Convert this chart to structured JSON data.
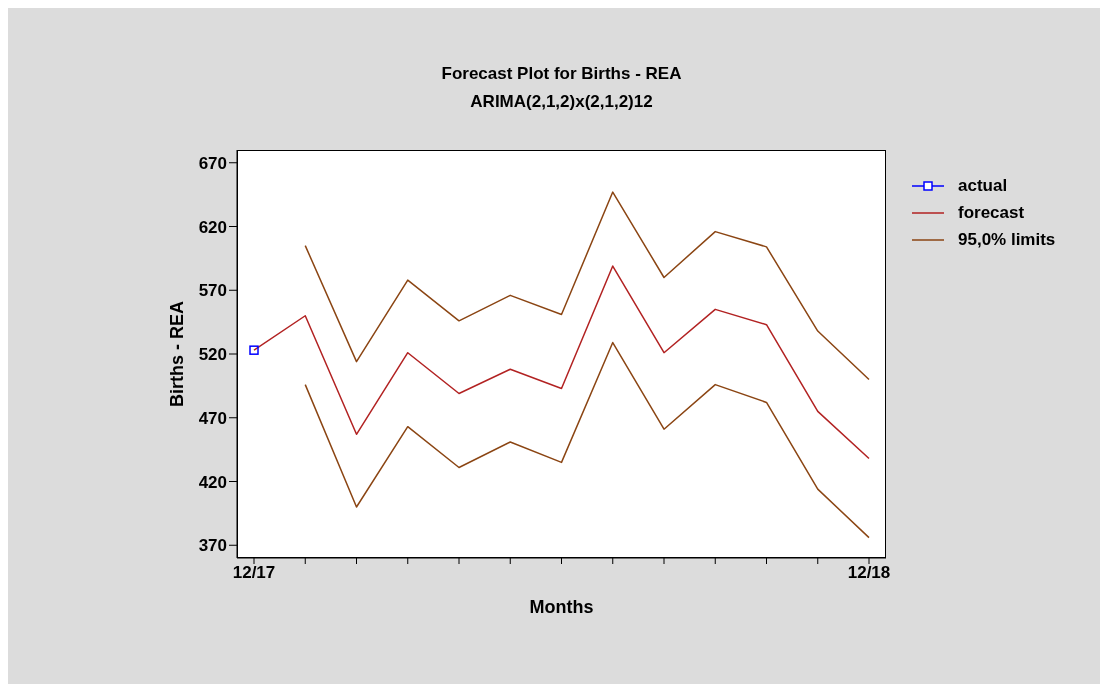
{
  "chart_data": {
    "type": "line",
    "title": "Forecast Plot for Births - REA",
    "subtitle": "ARIMA(2,1,2)x(2,1,2)12",
    "xlabel": "Months",
    "ylabel": "Births - REA",
    "categories": [
      "12/17",
      null,
      null,
      null,
      null,
      null,
      null,
      null,
      null,
      null,
      null,
      null,
      "12/18"
    ],
    "series": [
      {
        "name": "actual",
        "color": "#0000ff",
        "marker": "square",
        "values": [
          523,
          null,
          null,
          null,
          null,
          null,
          null,
          null,
          null,
          null,
          null,
          null,
          null
        ]
      },
      {
        "name": "forecast",
        "color": "#b22222",
        "marker": "none",
        "values": [
          523,
          550,
          457,
          521,
          489,
          508,
          493,
          589,
          521,
          555,
          543,
          475,
          438
        ]
      },
      {
        "name": "95,0% limits",
        "color": "#8b4513",
        "marker": "none",
        "values": [
          null,
          605,
          514,
          578,
          546,
          566,
          551,
          647,
          580,
          616,
          604,
          538,
          500
        ]
      },
      {
        "color": "#8b4513",
        "marker": "none",
        "values": [
          null,
          496,
          400,
          463,
          431,
          451,
          435,
          529,
          461,
          496,
          482,
          414,
          376
        ]
      }
    ],
    "ylim": [
      360,
      680
    ],
    "yticks": [
      370,
      420,
      470,
      520,
      570,
      620,
      670
    ],
    "grid": false,
    "legend": "right",
    "line_style": "solid"
  }
}
